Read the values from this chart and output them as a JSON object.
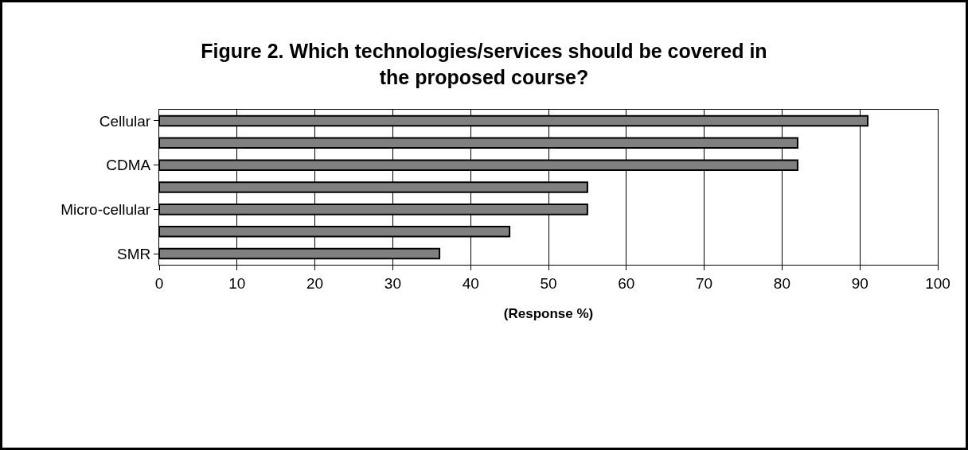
{
  "chart_data": {
    "type": "bar",
    "orientation": "horizontal",
    "title": "Figure 2. Which technologies/services should be covered in\nthe proposed course?",
    "xlabel": "(Response %)",
    "categories": [
      "Cellular",
      null,
      "CDMA",
      null,
      "Micro-cellular",
      null,
      "SMR"
    ],
    "values": [
      91,
      82,
      82,
      55,
      55,
      45,
      36
    ],
    "color": "#808080",
    "xlim": [
      0,
      100
    ],
    "xticks": [
      0,
      10,
      20,
      30,
      40,
      50,
      60,
      70,
      80,
      90,
      100
    ],
    "grid": "x"
  }
}
